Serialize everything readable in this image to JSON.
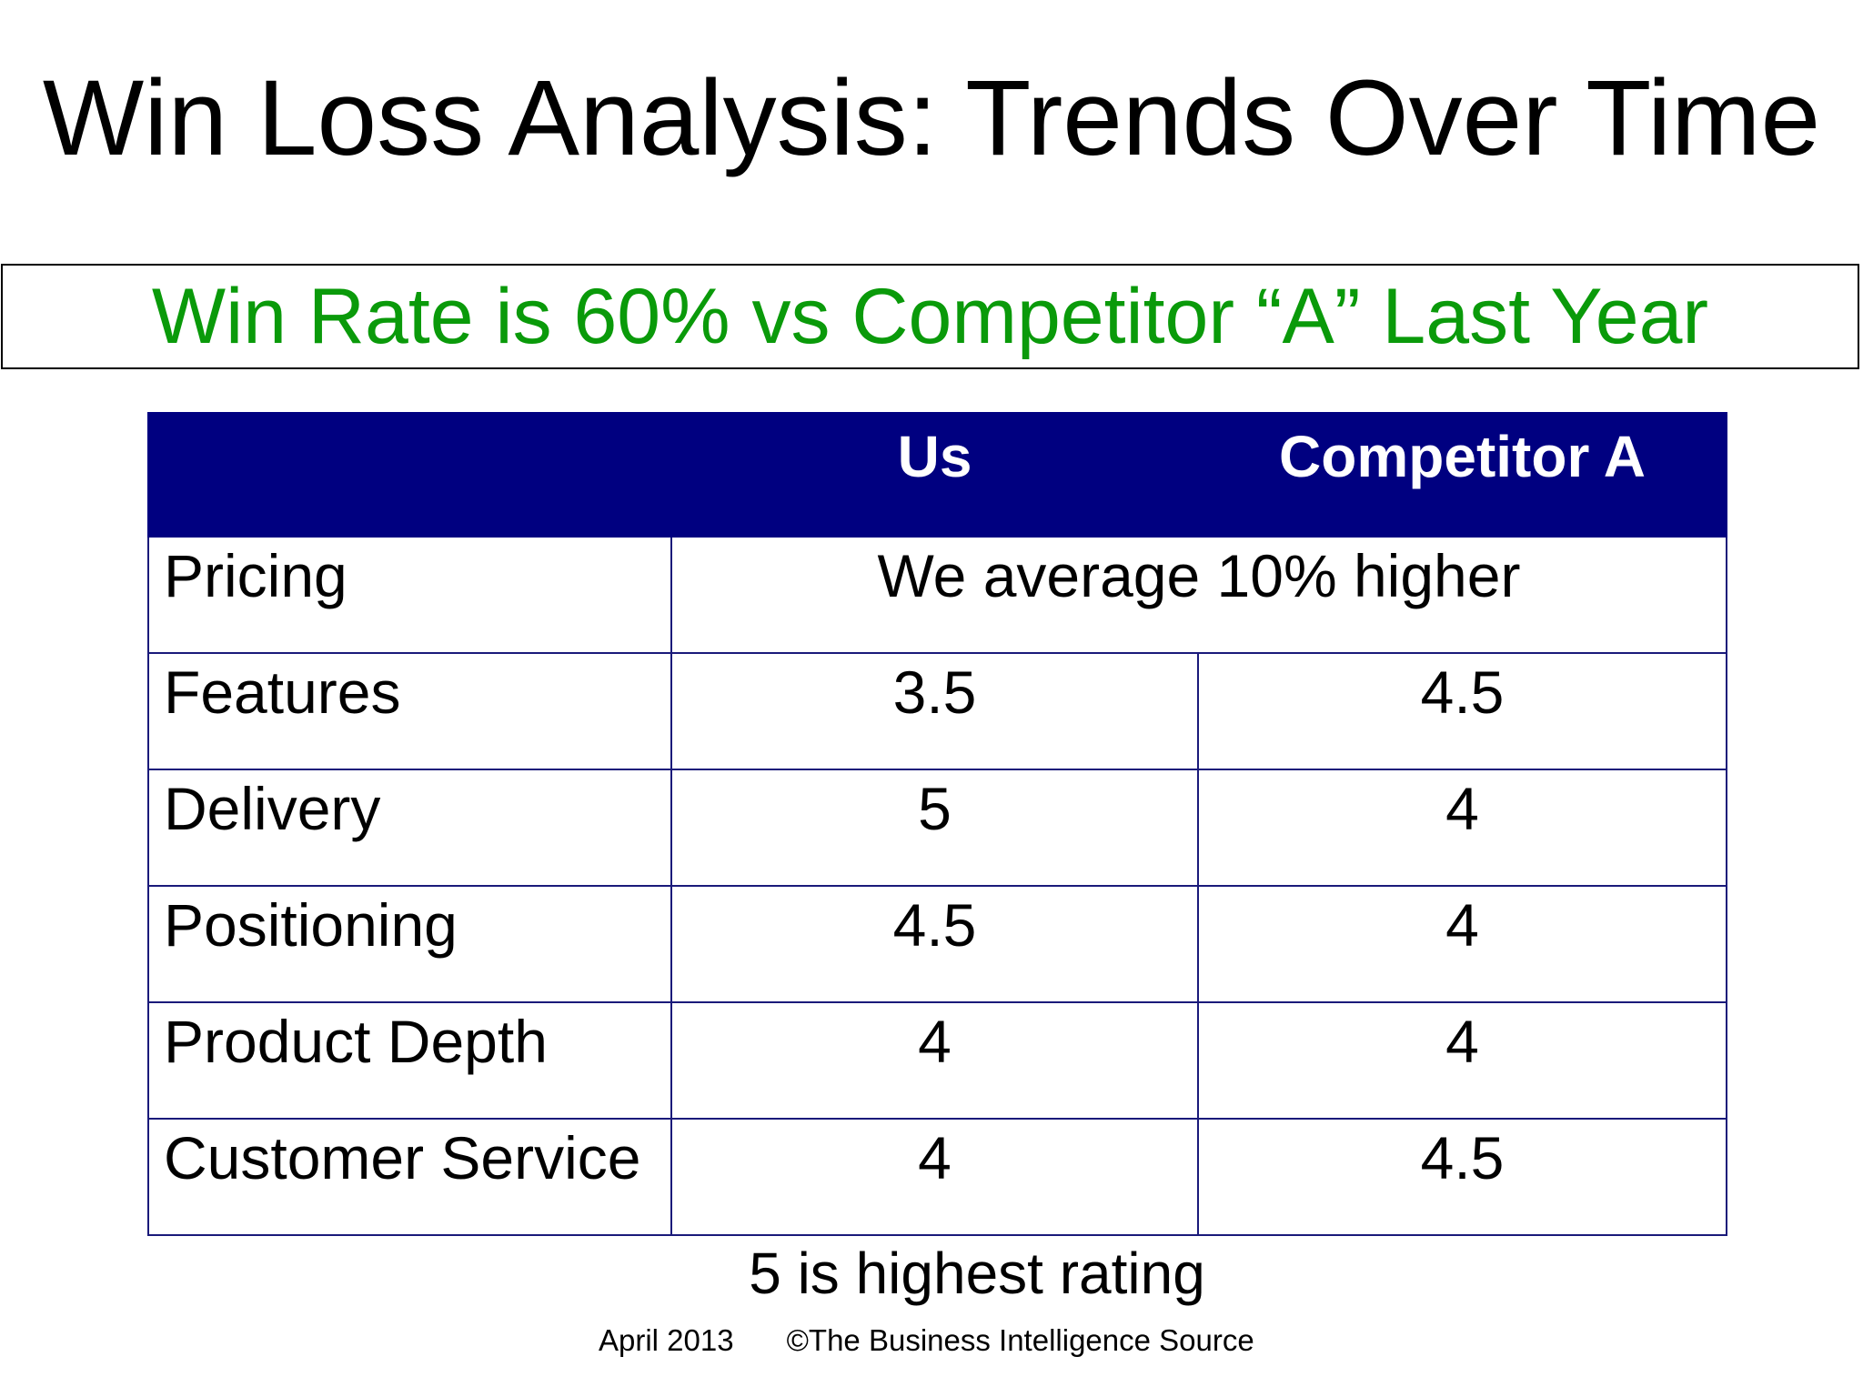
{
  "slide": {
    "title": "Win Loss Analysis: Trends Over Time",
    "subtitle": "Win Rate is 60% vs Competitor “A” Last Year",
    "subtitle_color": "#0a9a0a",
    "header_color": "#000080"
  },
  "table": {
    "columns": [
      "",
      "Us",
      "Competitor A"
    ],
    "rows": [
      {
        "label": "Pricing",
        "merged_value": "We average 10% higher"
      },
      {
        "label": "Features",
        "us": "3.5",
        "competitor": "4.5"
      },
      {
        "label": "Delivery",
        "us": "5",
        "competitor": "4"
      },
      {
        "label": "Positioning",
        "us": "4.5",
        "competitor": "4"
      },
      {
        "label": "Product Depth",
        "us": "4",
        "competitor": "4"
      },
      {
        "label": "Customer Service",
        "us": "4",
        "competitor": "4.5"
      }
    ]
  },
  "note": "5 is highest rating",
  "footer": {
    "date": "April 2013",
    "copyright": "©The Business Intelligence Source"
  }
}
